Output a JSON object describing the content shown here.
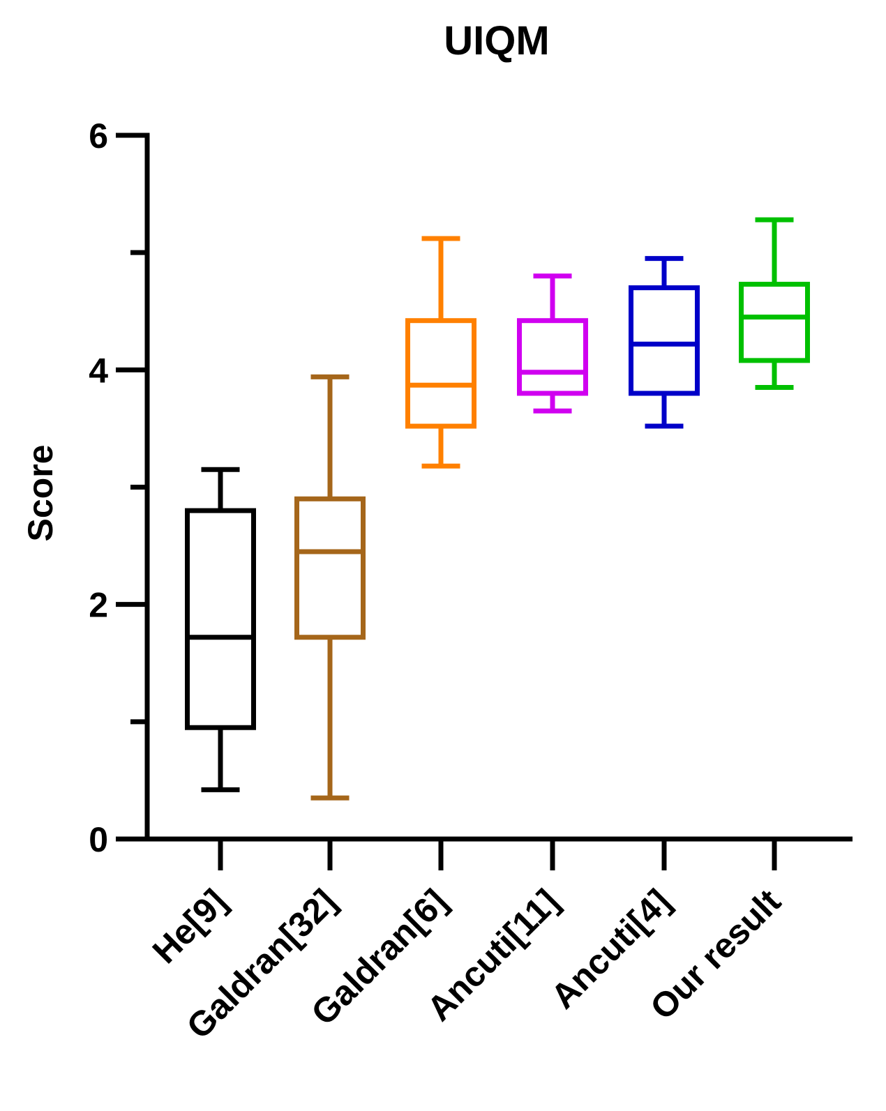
{
  "chart_data": {
    "type": "box",
    "title": "UIQM",
    "xlabel": "",
    "ylabel": "Score",
    "ylim": [
      0,
      6
    ],
    "yticks": [
      0,
      2,
      4,
      6
    ],
    "yticks_minor": [
      1,
      3,
      5
    ],
    "ytick_labels": [
      "0",
      "2",
      "4",
      "6"
    ],
    "grid": false,
    "categories": [
      "He[9]",
      "Galdran[32]",
      "Galdran[6]",
      "Ancuti[11]",
      "Ancuti[4]",
      "Our result"
    ],
    "colors": [
      "#000000",
      "#a5661a",
      "#ff8000",
      "#d000f0",
      "#0000c8",
      "#00c000"
    ],
    "boxes": [
      {
        "label": "He[9]",
        "min": 0.42,
        "q1": 0.95,
        "median": 1.72,
        "q3": 2.8,
        "max": 3.15
      },
      {
        "label": "Galdran[32]",
        "min": 0.35,
        "q1": 1.72,
        "median": 2.45,
        "q3": 2.9,
        "max": 3.94
      },
      {
        "label": "Galdran[6]",
        "min": 3.18,
        "q1": 3.52,
        "median": 3.87,
        "q3": 4.42,
        "max": 5.12
      },
      {
        "label": "Ancuti[11]",
        "min": 3.65,
        "q1": 3.8,
        "median": 3.98,
        "q3": 4.42,
        "max": 4.8
      },
      {
        "label": "Ancuti[4]",
        "min": 3.52,
        "q1": 3.8,
        "median": 4.22,
        "q3": 4.7,
        "max": 4.95
      },
      {
        "label": "Our result",
        "min": 3.85,
        "q1": 4.08,
        "median": 4.45,
        "q3": 4.73,
        "max": 5.28
      }
    ]
  }
}
